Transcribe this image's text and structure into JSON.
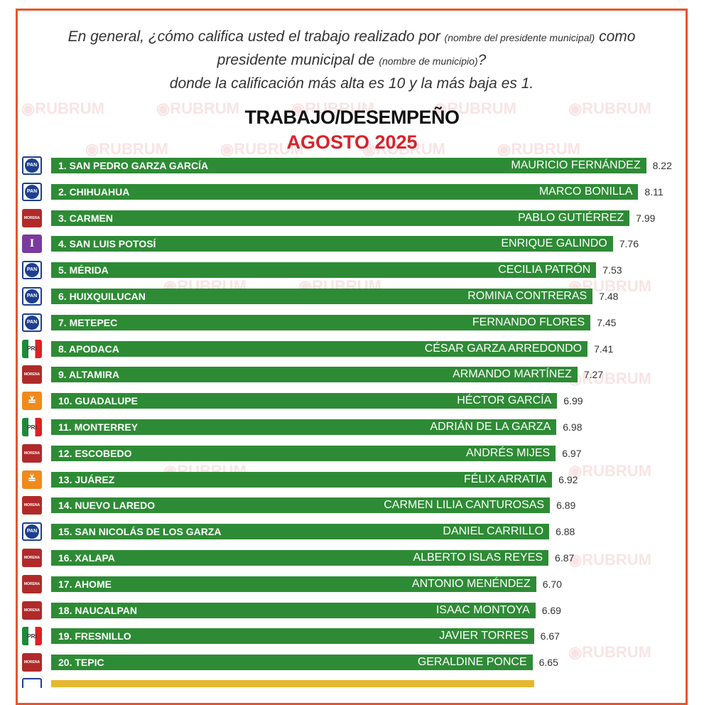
{
  "header": {
    "q1": "En general, ¿cómo califica usted el trabajo realizado por",
    "q1_small": "(nombre del presidente municipal)",
    "q2": "como presidente municipal de",
    "q2_small": "(nombre de municipio)",
    "q2_end": "?",
    "q3": "donde la calificación más alta es 10 y la más baja es 1."
  },
  "watermark": "RUBRUM",
  "colors": {
    "bar": "#2e8b35",
    "border": "#e8542b",
    "subtitle": "#d8232a",
    "partial_bar": "#e6b830"
  },
  "chart_data": {
    "type": "bar",
    "orientation": "horizontal",
    "title": "TRABAJO/DESEMPEÑO",
    "subtitle": "AGOSTO 2025",
    "xlim": [
      0,
      10
    ],
    "grid": false,
    "rows": [
      {
        "rank": "1. SAN PEDRO GARZA GARCÍA",
        "mayor": "MAURICIO FERNÁNDEZ",
        "value": 8.22,
        "party": "PAN"
      },
      {
        "rank": "2. CHIHUAHUA",
        "mayor": "MARCO BONILLA",
        "value": 8.11,
        "party": "PAN"
      },
      {
        "rank": "3. CARMEN",
        "mayor": "PABLO GUTIÉRREZ",
        "value": 7.99,
        "party": "MORENA"
      },
      {
        "rank": "4. SAN LUIS POTOSÍ",
        "mayor": "ENRIQUE GALINDO",
        "value": 7.76,
        "party": "I"
      },
      {
        "rank": "5. MÉRIDA",
        "mayor": "CECILIA PATRÓN",
        "value": 7.53,
        "party": "PAN"
      },
      {
        "rank": "6. HUIXQUILUCAN",
        "mayor": "ROMINA CONTRERAS",
        "value": 7.48,
        "party": "PAN"
      },
      {
        "rank": "7. METEPEC",
        "mayor": "FERNANDO FLORES",
        "value": 7.45,
        "party": "PAN"
      },
      {
        "rank": "8. APODACA",
        "mayor": "CÉSAR GARZA ARREDONDO",
        "value": 7.41,
        "party": "PRI"
      },
      {
        "rank": "9. ALTAMIRA",
        "mayor": "ARMANDO MARTÍNEZ",
        "value": 7.27,
        "party": "MORENA"
      },
      {
        "rank": "10. GUADALUPE",
        "mayor": "HÉCTOR GARCÍA",
        "value": 6.99,
        "party": "MC"
      },
      {
        "rank": "11. MONTERREY",
        "mayor": "ADRIÁN DE LA GARZA",
        "value": 6.98,
        "party": "PRI"
      },
      {
        "rank": "12. ESCOBEDO",
        "mayor": "ANDRÉS MIJES",
        "value": 6.97,
        "party": "MORENA"
      },
      {
        "rank": "13. JUÁREZ",
        "mayor": "FÉLIX ARRATIA",
        "value": 6.92,
        "party": "MC"
      },
      {
        "rank": "14. NUEVO LAREDO",
        "mayor": "CARMEN LILIA CANTUROSAS",
        "value": 6.89,
        "party": "MORENA"
      },
      {
        "rank": "15. SAN NICOLÁS DE LOS GARZA",
        "mayor": "DANIEL CARRILLO",
        "value": 6.88,
        "party": "PAN"
      },
      {
        "rank": "16. XALAPA",
        "mayor": "ALBERTO ISLAS REYES",
        "value": 6.87,
        "party": "MORENA"
      },
      {
        "rank": "17. AHOME",
        "mayor": "ANTONIO MENÉNDEZ",
        "value": 6.7,
        "party": "MORENA"
      },
      {
        "rank": "18. NAUCALPAN",
        "mayor": "ISAAC MONTOYA",
        "value": 6.69,
        "party": "MORENA"
      },
      {
        "rank": "19. FRESNILLO",
        "mayor": "JAVIER TORRES",
        "value": 6.67,
        "party": "PRI"
      },
      {
        "rank": "20. TEPIC",
        "mayor": "GERALDINE PONCE",
        "value": 6.65,
        "party": "MORENA"
      }
    ]
  }
}
